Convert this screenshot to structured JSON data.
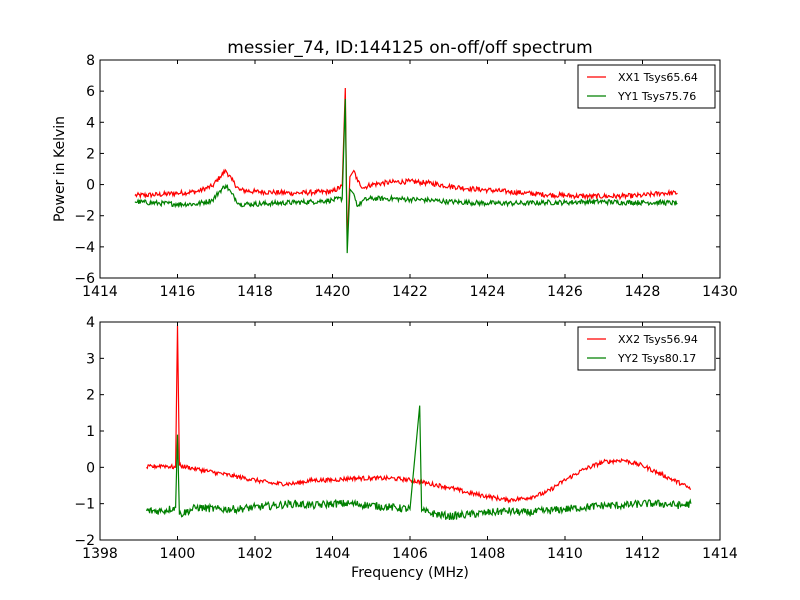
{
  "chart_data": [
    {
      "type": "line",
      "title": "messier_74, ID:144125 on-off/off spectrum",
      "xlabel": "",
      "ylabel": "Power in Kelvin",
      "xlim": [
        1414,
        1430
      ],
      "ylim": [
        -6,
        8
      ],
      "xticks": [
        1414,
        1416,
        1418,
        1420,
        1422,
        1424,
        1426,
        1428,
        1430
      ],
      "yticks": [
        -6,
        -4,
        -2,
        0,
        2,
        4,
        6,
        8
      ],
      "xtick_labels": [
        "1414",
        "1416",
        "1418",
        "1420",
        "1422",
        "1424",
        "1426",
        "1428",
        "1430"
      ],
      "ytick_labels": [
        "−6",
        "−4",
        "−2",
        "0",
        "2",
        "4",
        "6",
        "8"
      ],
      "grid": false,
      "legend_position": "top-right",
      "series": [
        {
          "name": "XX1 Tsys65.64",
          "color": "#ff0000",
          "x": [
            1414.9,
            1415.5,
            1416.0,
            1416.5,
            1416.9,
            1417.1,
            1417.25,
            1417.4,
            1417.6,
            1418.0,
            1418.5,
            1419.0,
            1419.5,
            1420.0,
            1420.25,
            1420.33,
            1420.38,
            1420.45,
            1420.55,
            1420.65,
            1420.8,
            1421.0,
            1421.5,
            1422.0,
            1422.5,
            1423.0,
            1423.5,
            1424.0,
            1424.5,
            1425.0,
            1425.5,
            1426.0,
            1426.5,
            1427.0,
            1427.5,
            1428.0,
            1428.5,
            1428.9
          ],
          "y": [
            -0.7,
            -0.65,
            -0.55,
            -0.45,
            -0.1,
            0.5,
            0.9,
            0.3,
            -0.35,
            -0.45,
            -0.5,
            -0.55,
            -0.5,
            -0.45,
            -0.1,
            6.2,
            -3.8,
            0.5,
            0.9,
            0.2,
            -0.2,
            0.0,
            0.15,
            0.2,
            0.1,
            -0.1,
            -0.25,
            -0.35,
            -0.45,
            -0.55,
            -0.65,
            -0.7,
            -0.75,
            -0.75,
            -0.75,
            -0.7,
            -0.55,
            -0.55
          ]
        },
        {
          "name": "YY1 Tsys75.76",
          "color": "#008000",
          "x": [
            1414.9,
            1415.5,
            1416.0,
            1416.5,
            1416.9,
            1417.1,
            1417.25,
            1417.4,
            1417.6,
            1418.0,
            1418.5,
            1419.0,
            1419.5,
            1420.0,
            1420.25,
            1420.33,
            1420.38,
            1420.45,
            1420.55,
            1420.65,
            1420.8,
            1421.0,
            1421.5,
            1422.0,
            1422.5,
            1423.0,
            1423.5,
            1424.0,
            1424.5,
            1425.0,
            1425.5,
            1426.0,
            1426.5,
            1427.0,
            1427.5,
            1428.0,
            1428.5,
            1428.9
          ],
          "y": [
            -1.1,
            -1.2,
            -1.25,
            -1.25,
            -1.0,
            -0.4,
            -0.05,
            -0.6,
            -1.25,
            -1.25,
            -1.2,
            -1.15,
            -1.1,
            -1.0,
            -0.9,
            5.5,
            -4.4,
            -0.3,
            -0.6,
            -1.4,
            -1.0,
            -0.9,
            -0.9,
            -0.95,
            -1.0,
            -1.1,
            -1.15,
            -1.2,
            -1.2,
            -1.2,
            -1.15,
            -1.15,
            -1.1,
            -1.1,
            -1.15,
            -1.15,
            -1.15,
            -1.2
          ]
        }
      ]
    },
    {
      "type": "line",
      "title": "",
      "xlabel": "Frequency (MHz)",
      "ylabel": "",
      "xlim": [
        1398,
        1414
      ],
      "ylim": [
        -2,
        4
      ],
      "xticks": [
        1398,
        1400,
        1402,
        1404,
        1406,
        1408,
        1410,
        1412,
        1414
      ],
      "yticks": [
        -2,
        -1,
        0,
        1,
        2,
        3,
        4
      ],
      "xtick_labels": [
        "1398",
        "1400",
        "1402",
        "1404",
        "1406",
        "1408",
        "1410",
        "1412",
        "1414"
      ],
      "ytick_labels": [
        "−2",
        "−1",
        "0",
        "1",
        "2",
        "3",
        "4"
      ],
      "grid": false,
      "legend_position": "top-right",
      "series": [
        {
          "name": "XX2 Tsys56.94",
          "color": "#ff0000",
          "x": [
            1399.2,
            1399.6,
            1399.95,
            1400.0,
            1400.05,
            1400.5,
            1401.0,
            1401.5,
            1402.0,
            1402.5,
            1403.0,
            1403.5,
            1404.0,
            1404.5,
            1405.0,
            1405.5,
            1406.0,
            1406.5,
            1407.0,
            1407.5,
            1408.0,
            1408.5,
            1409.0,
            1409.5,
            1410.0,
            1410.5,
            1411.0,
            1411.5,
            1412.0,
            1412.5,
            1413.0,
            1413.25
          ],
          "y": [
            0.0,
            0.05,
            0.0,
            3.9,
            0.05,
            -0.05,
            -0.15,
            -0.25,
            -0.35,
            -0.45,
            -0.45,
            -0.35,
            -0.35,
            -0.3,
            -0.3,
            -0.3,
            -0.35,
            -0.45,
            -0.55,
            -0.7,
            -0.8,
            -0.9,
            -0.85,
            -0.7,
            -0.35,
            -0.05,
            0.15,
            0.2,
            0.05,
            -0.2,
            -0.45,
            -0.6
          ]
        },
        {
          "name": "YY2 Tsys80.17",
          "color": "#008000",
          "x": [
            1399.2,
            1399.6,
            1399.95,
            1400.0,
            1400.05,
            1400.5,
            1401.0,
            1401.5,
            1402.0,
            1402.5,
            1403.0,
            1403.5,
            1404.0,
            1404.5,
            1405.0,
            1405.5,
            1406.0,
            1406.25,
            1406.3,
            1406.5,
            1407.0,
            1407.5,
            1408.0,
            1408.5,
            1409.0,
            1409.5,
            1410.0,
            1410.5,
            1411.0,
            1411.5,
            1412.0,
            1412.5,
            1413.0,
            1413.25
          ],
          "y": [
            -1.2,
            -1.2,
            -1.1,
            0.9,
            -1.3,
            -1.1,
            -1.15,
            -1.15,
            -1.1,
            -1.05,
            -1.0,
            -1.05,
            -1.0,
            -1.0,
            -1.05,
            -1.1,
            -1.15,
            1.7,
            -1.2,
            -1.25,
            -1.35,
            -1.3,
            -1.25,
            -1.2,
            -1.25,
            -1.2,
            -1.15,
            -1.1,
            -1.05,
            -1.05,
            -1.0,
            -1.0,
            -1.05,
            -1.0
          ]
        }
      ]
    }
  ]
}
